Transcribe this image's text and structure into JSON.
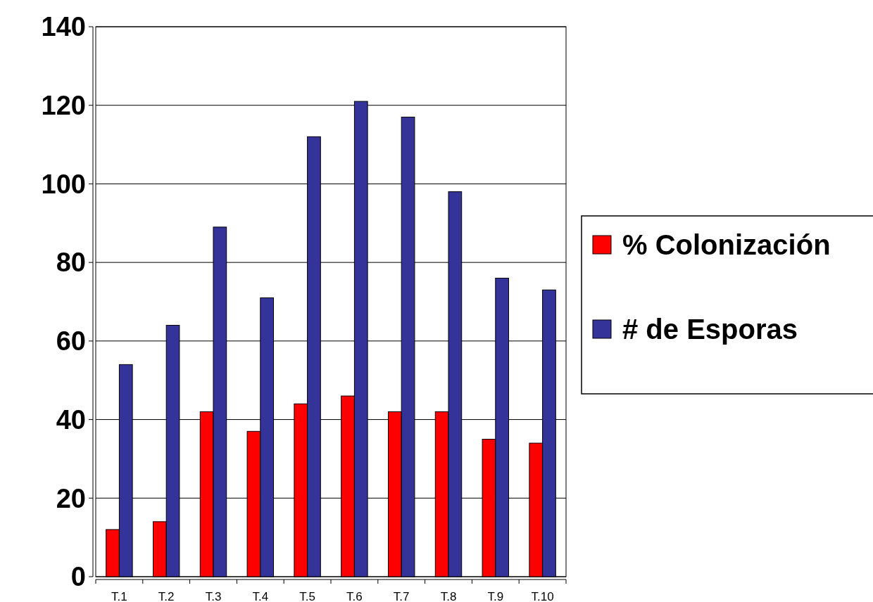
{
  "chart_data": {
    "type": "bar",
    "categories": [
      "T.1",
      "T.2",
      "T.3",
      "T.4",
      "T.5",
      "T.6",
      "T.7",
      "T.8",
      "T.9",
      "T.10"
    ],
    "series": [
      {
        "name": "% Colonización",
        "color": "#ff0000",
        "values": [
          12,
          14,
          42,
          37,
          44,
          46,
          42,
          42,
          35,
          34
        ]
      },
      {
        "name": "# de Esporas",
        "color": "#333399",
        "values": [
          54,
          64,
          89,
          71,
          112,
          121,
          117,
          98,
          76,
          73
        ]
      }
    ],
    "ylim": [
      0,
      140
    ],
    "yticks": [
      0,
      20,
      40,
      60,
      80,
      100,
      120,
      140
    ],
    "grid": "y",
    "legend": "right"
  }
}
